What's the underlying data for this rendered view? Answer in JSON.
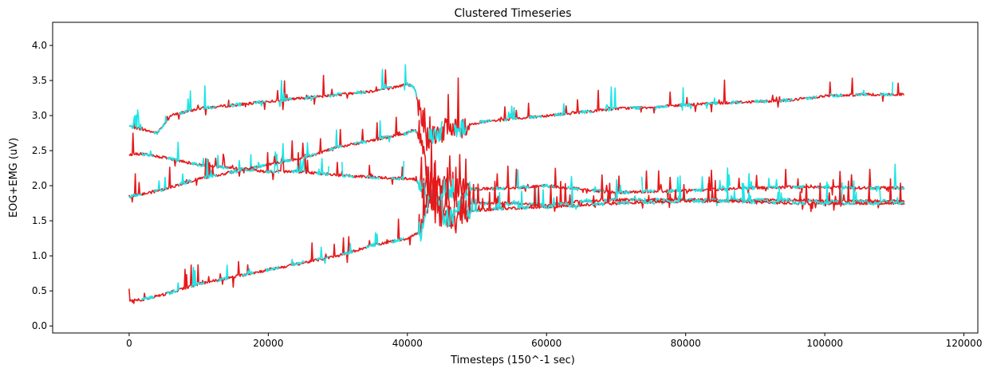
{
  "chart_data": {
    "type": "line",
    "title": "Clustered Timeseries",
    "xlabel": "Timesteps (150^-1 sec)",
    "ylabel": "EOG+EMG (uV)",
    "xlim": [
      -11000,
      122000
    ],
    "ylim": [
      -0.1,
      4.33
    ],
    "x_ticks": [
      0,
      20000,
      40000,
      60000,
      80000,
      100000,
      120000
    ],
    "x_tick_labels": [
      "0",
      "20000",
      "40000",
      "60000",
      "80000",
      "100000",
      "120000"
    ],
    "y_ticks": [
      0.0,
      0.5,
      1.0,
      1.5,
      2.0,
      2.5,
      3.0,
      3.5,
      4.0
    ],
    "y_tick_labels": [
      "0.0",
      "0.5",
      "1.0",
      "1.5",
      "2.0",
      "2.5",
      "3.0",
      "3.5",
      "4.0"
    ],
    "grid": false,
    "legend": "none",
    "colors": {
      "cluster_a": "#e41a1c",
      "cluster_b": "#1fe5e5"
    },
    "series": [
      {
        "cluster": "cluster_a",
        "x": [
          0,
          2000,
          4000,
          6000,
          8000,
          10000,
          15000,
          20000,
          25000,
          30000,
          35000,
          38000,
          40000,
          41000,
          42000,
          43000,
          44000,
          46000,
          48000,
          50000,
          55000,
          60000,
          65000,
          70000,
          75000,
          80000,
          85000,
          90000,
          95000,
          100000,
          105000,
          110000,
          111500
        ],
        "y": [
          2.85,
          2.8,
          2.75,
          3.0,
          3.05,
          3.1,
          3.15,
          3.2,
          3.25,
          3.3,
          3.35,
          3.4,
          3.45,
          3.4,
          3.0,
          2.7,
          2.75,
          2.8,
          2.85,
          2.9,
          2.95,
          3.0,
          3.05,
          3.1,
          3.12,
          3.15,
          3.18,
          3.2,
          3.22,
          3.28,
          3.3,
          3.3,
          3.3
        ]
      },
      {
        "cluster": "cluster_a",
        "x": [
          0,
          2000,
          5000,
          10000,
          15000,
          20000,
          25000,
          30000,
          35000,
          40000,
          41000,
          42000,
          43000,
          44000,
          46000,
          48000,
          50000,
          55000,
          60000,
          65000,
          70000,
          75000,
          80000,
          85000,
          90000,
          95000,
          100000,
          105000,
          110000,
          111500
        ],
        "y": [
          2.45,
          2.45,
          2.4,
          2.3,
          2.25,
          2.2,
          2.2,
          2.15,
          2.12,
          2.1,
          2.1,
          2.0,
          1.9,
          2.0,
          1.95,
          1.95,
          1.95,
          1.97,
          2.0,
          1.95,
          1.9,
          1.92,
          1.93,
          1.95,
          1.97,
          1.98,
          1.98,
          1.97,
          1.97,
          1.97
        ]
      },
      {
        "cluster": "cluster_a",
        "x": [
          0,
          2000,
          5000,
          10000,
          15000,
          20000,
          25000,
          30000,
          35000,
          40000,
          41000,
          42000,
          43000,
          44000,
          46000,
          48000,
          50000,
          55000,
          60000,
          65000,
          70000,
          75000,
          80000,
          85000,
          90000,
          95000,
          100000,
          105000,
          110000,
          111500
        ],
        "y": [
          1.85,
          1.88,
          1.95,
          2.1,
          2.2,
          2.3,
          2.4,
          2.55,
          2.65,
          2.75,
          2.8,
          2.7,
          2.0,
          1.8,
          1.7,
          1.72,
          1.75,
          1.75,
          1.72,
          1.78,
          1.8,
          1.8,
          1.8,
          1.8,
          1.8,
          1.8,
          1.78,
          1.78,
          1.78,
          1.78
        ]
      },
      {
        "cluster": "cluster_a",
        "x": [
          0,
          2000,
          5000,
          10000,
          15000,
          20000,
          25000,
          30000,
          35000,
          40000,
          41000,
          42000,
          43000,
          44000,
          46000,
          48000,
          50000,
          55000,
          60000,
          65000,
          70000,
          75000,
          80000,
          85000,
          90000,
          95000,
          100000,
          105000,
          110000,
          111500
        ],
        "y": [
          0.35,
          0.38,
          0.45,
          0.6,
          0.7,
          0.8,
          0.9,
          1.0,
          1.15,
          1.25,
          1.3,
          1.35,
          1.8,
          1.6,
          1.55,
          1.6,
          1.65,
          1.68,
          1.7,
          1.72,
          1.75,
          1.77,
          1.78,
          1.78,
          1.77,
          1.75,
          1.75,
          1.75,
          1.75,
          1.75
        ]
      }
    ]
  }
}
